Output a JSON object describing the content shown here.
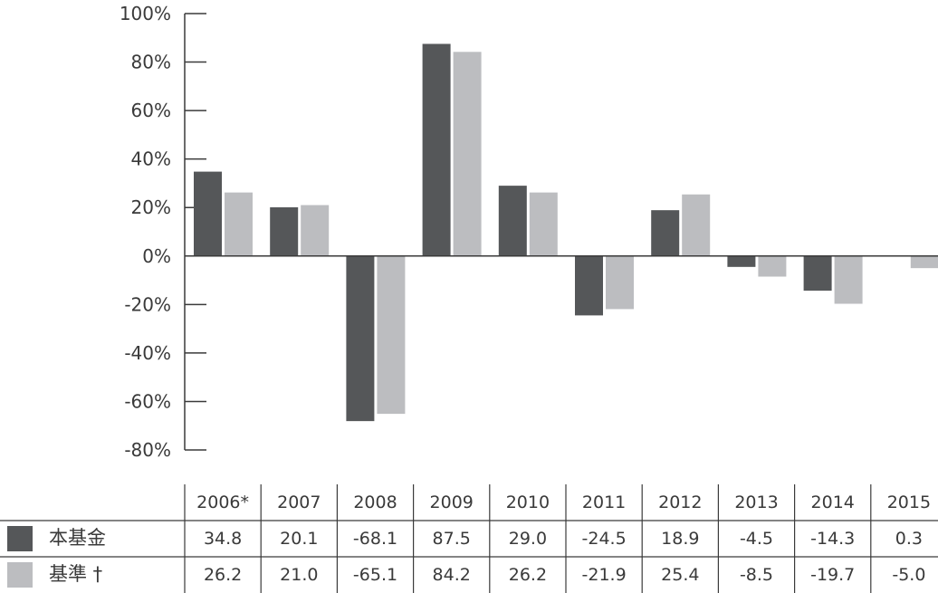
{
  "chart_data": {
    "type": "bar",
    "categories": [
      "2006*",
      "2007",
      "2008",
      "2009",
      "2010",
      "2011",
      "2012",
      "2013",
      "2014",
      "2015"
    ],
    "series": [
      {
        "name": "本基金",
        "legend_label": "本基金",
        "color": "#555759",
        "values": [
          34.8,
          20.1,
          -68.1,
          87.5,
          29.0,
          -24.5,
          18.9,
          -4.5,
          -14.3,
          0.3
        ]
      },
      {
        "name": "基準",
        "legend_label": "基準 †",
        "color": "#bcbdc0",
        "values": [
          26.2,
          21.0,
          -65.1,
          84.2,
          26.2,
          -21.9,
          25.4,
          -8.5,
          -19.7,
          -5.0
        ]
      }
    ],
    "table_values": [
      [
        "34.8",
        "20.1",
        "-68.1",
        "87.5",
        "29.0",
        "-24.5",
        "18.9",
        "-4.5",
        "-14.3",
        "0.3"
      ],
      [
        "26.2",
        "21.0",
        "-65.1",
        "84.2",
        "26.2",
        "-21.9",
        "25.4",
        "-8.5",
        "-19.7",
        "-5.0"
      ]
    ],
    "ylim": [
      -80,
      100
    ],
    "yticks": [
      100,
      80,
      60,
      40,
      20,
      0,
      -20,
      -40,
      -60,
      -80
    ],
    "ytick_labels": [
      "100%",
      "80%",
      "60%",
      "40%",
      "20%",
      "0%",
      "-20%",
      "-40%",
      "-60%",
      "-80%"
    ],
    "grid": false,
    "legend_placement": "data-table-rows"
  }
}
